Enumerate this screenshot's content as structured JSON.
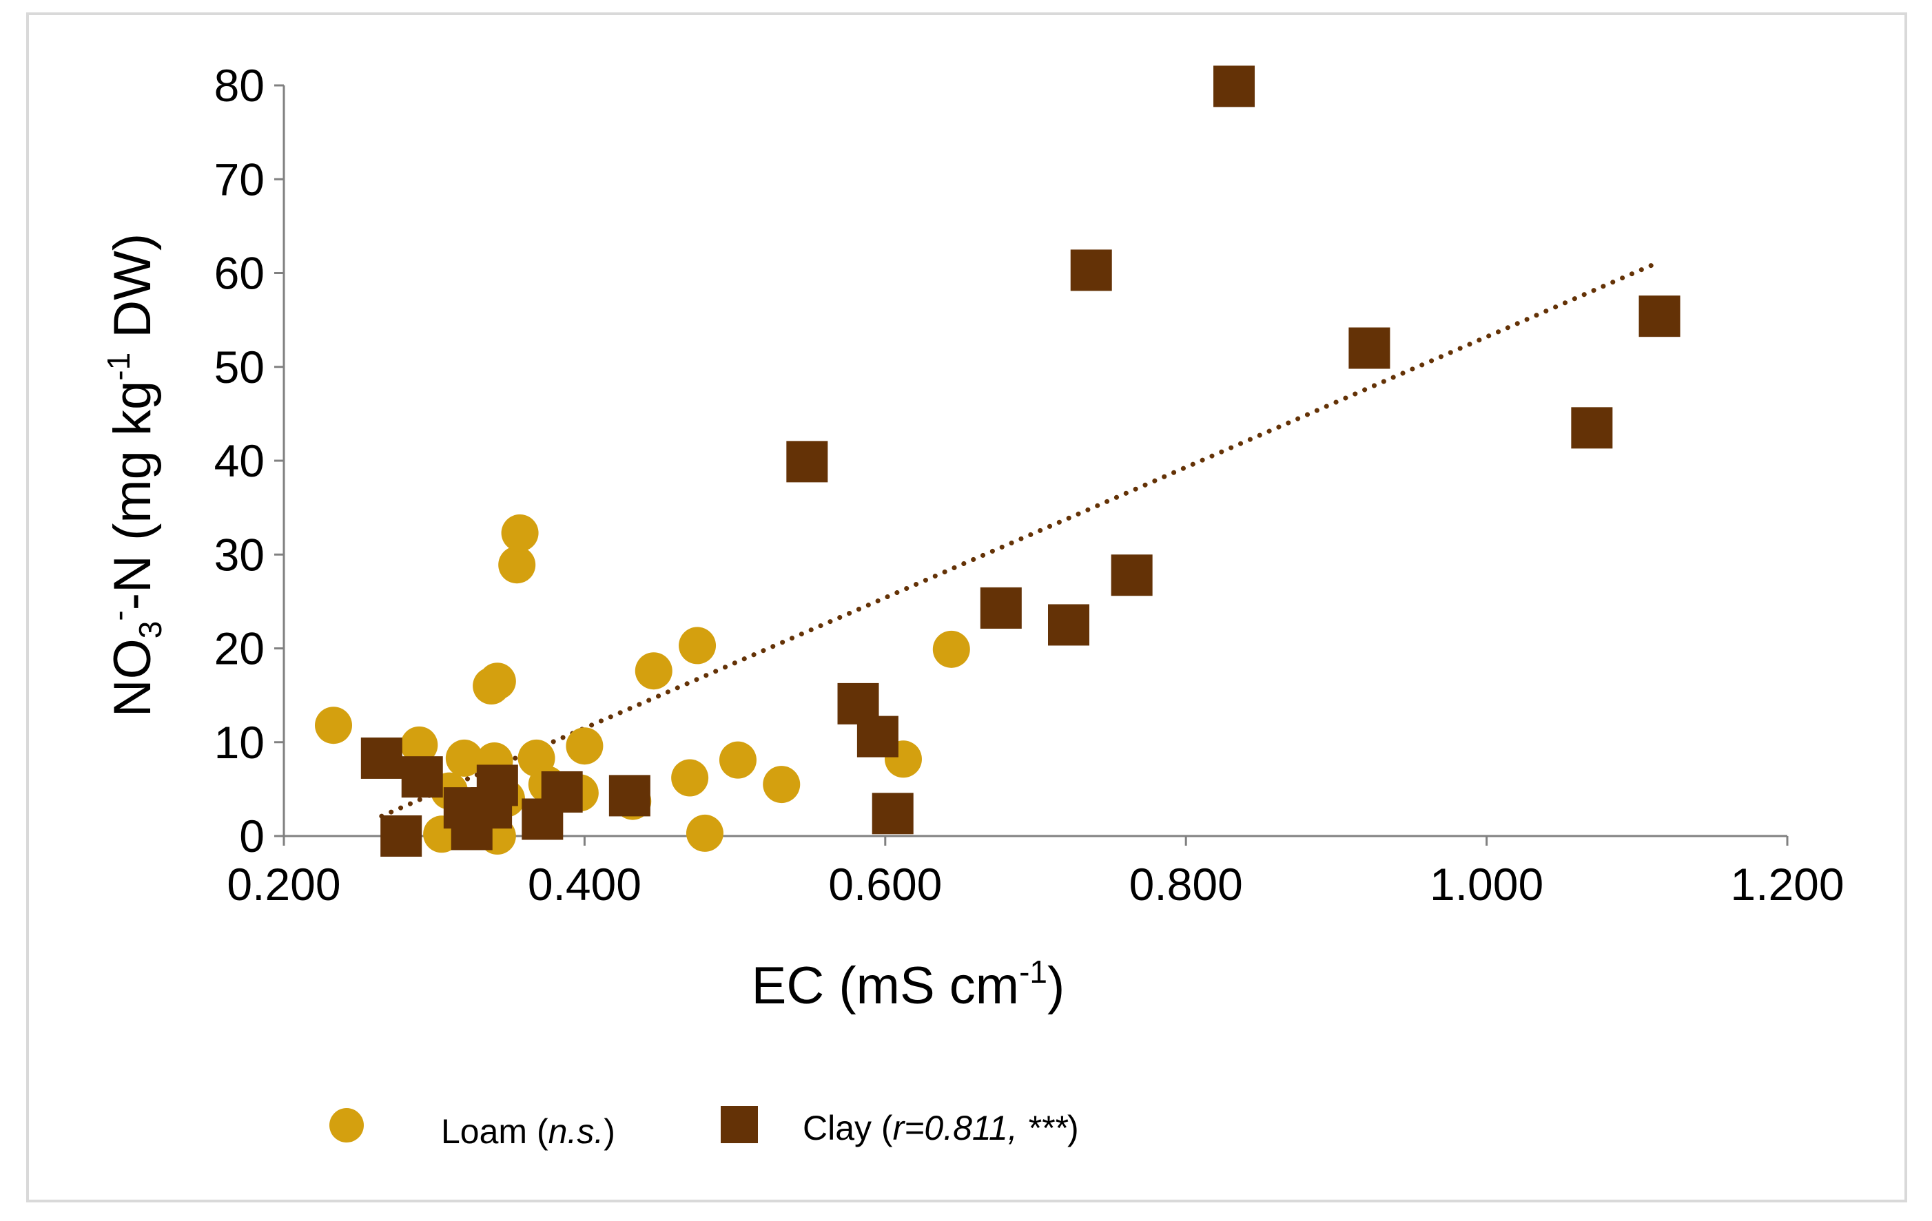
{
  "chart_data": {
    "type": "scatter",
    "title": "",
    "xlabel": {
      "base": "EC (mS cm",
      "sup": "-1",
      "end": ")"
    },
    "ylabel": {
      "a": "NO",
      "sub": "3",
      "b": "",
      "sup1": "-",
      "c": "-N (mg kg",
      "sup2": "-1",
      "d": " DW)"
    },
    "xlim": [
      0.2,
      1.2
    ],
    "ylim": [
      0,
      80
    ],
    "x_ticks": [
      0.2,
      0.4,
      0.6,
      0.8,
      1.0,
      1.2
    ],
    "x_tick_labels": [
      "0.200",
      "0.400",
      "0.600",
      "0.800",
      "1.000",
      "1.200"
    ],
    "y_ticks": [
      0,
      10,
      20,
      30,
      40,
      50,
      60,
      70,
      80
    ],
    "y_tick_labels": [
      "0",
      "10",
      "20",
      "30",
      "40",
      "50",
      "60",
      "70",
      "80"
    ],
    "grid": false,
    "legend_position": "bottom",
    "series": [
      {
        "name": "Loam",
        "name_note": "n.s.",
        "color": "#D4A00F",
        "marker": "circle",
        "points": [
          [
            0.233,
            11.8
          ],
          [
            0.29,
            9.7
          ],
          [
            0.305,
            0.2
          ],
          [
            0.31,
            4.8
          ],
          [
            0.32,
            8.3
          ],
          [
            0.335,
            0.8
          ],
          [
            0.338,
            16.0
          ],
          [
            0.342,
            16.5
          ],
          [
            0.34,
            8.0
          ],
          [
            0.342,
            0.0
          ],
          [
            0.343,
            5.0
          ],
          [
            0.348,
            4.0
          ],
          [
            0.355,
            28.9
          ],
          [
            0.357,
            32.3
          ],
          [
            0.368,
            8.3
          ],
          [
            0.375,
            5.5
          ],
          [
            0.397,
            4.6
          ],
          [
            0.4,
            9.6
          ],
          [
            0.432,
            3.7
          ],
          [
            0.446,
            17.6
          ],
          [
            0.47,
            6.2
          ],
          [
            0.475,
            20.3
          ],
          [
            0.48,
            0.3
          ],
          [
            0.502,
            8.1
          ],
          [
            0.531,
            5.5
          ],
          [
            0.612,
            8.2
          ],
          [
            0.644,
            19.9
          ]
        ]
      },
      {
        "name": "Clay",
        "name_note": "r=0.811, ***",
        "color": "#643206",
        "marker": "square",
        "points": [
          [
            0.265,
            8.3
          ],
          [
            0.278,
            0.0
          ],
          [
            0.292,
            6.3
          ],
          [
            0.32,
            3.0
          ],
          [
            0.325,
            0.7
          ],
          [
            0.338,
            3.0
          ],
          [
            0.342,
            5.4
          ],
          [
            0.372,
            1.8
          ],
          [
            0.385,
            4.7
          ],
          [
            0.43,
            4.3
          ],
          [
            0.548,
            39.9
          ],
          [
            0.582,
            14.1
          ],
          [
            0.595,
            10.6
          ],
          [
            0.605,
            2.4
          ],
          [
            0.677,
            24.3
          ],
          [
            0.722,
            22.5
          ],
          [
            0.737,
            60.3
          ],
          [
            0.764,
            27.8
          ],
          [
            0.832,
            79.9
          ],
          [
            0.922,
            52.0
          ],
          [
            1.07,
            43.5
          ],
          [
            1.115,
            55.4
          ]
        ]
      }
    ],
    "trendline": {
      "series": "Clay",
      "style": "dotted",
      "color": "#643206",
      "x_range": [
        0.265,
        1.115
      ],
      "slope": 69.5,
      "intercept": -16.3
    }
  }
}
